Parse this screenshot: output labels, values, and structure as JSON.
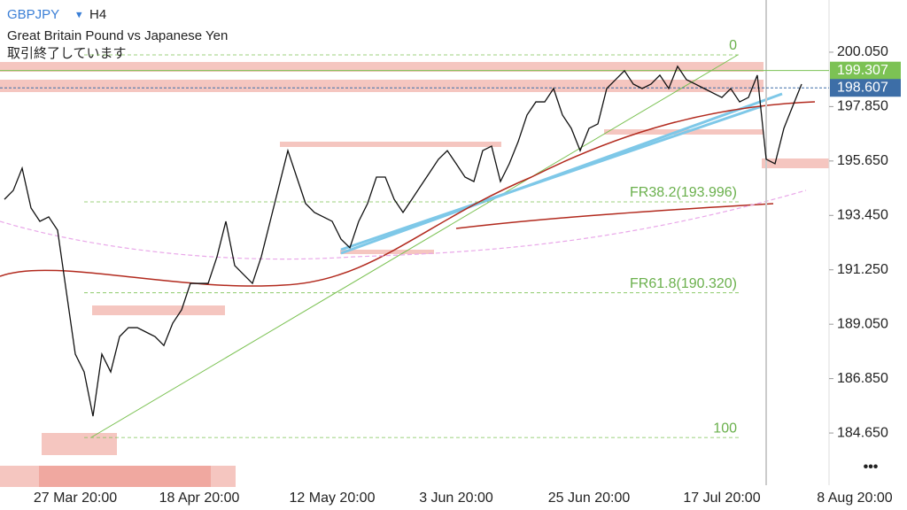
{
  "header": {
    "symbol": "GBPJPY",
    "dropdown": "▾",
    "timeframe": "H4",
    "description": "Great Britain Pound vs Japanese Yen",
    "status": "取引終了しています",
    "menu": "•••"
  },
  "chart_data": {
    "type": "line",
    "color": "#111111",
    "categories": [
      null,
      null,
      null,
      null,
      null,
      null,
      null,
      null,
      "27 Mar 20:00",
      null,
      null,
      null,
      null,
      null,
      null,
      null,
      null,
      null,
      null,
      null,
      null,
      null,
      "18 Apr 20:00",
      null,
      null,
      null,
      null,
      null,
      null,
      null,
      null,
      null,
      null,
      null,
      null,
      null,
      null,
      "12 May 20:00",
      null,
      null,
      null,
      null,
      null,
      null,
      null,
      null,
      null,
      null,
      null,
      null,
      null,
      "3 Jun 20:00",
      null,
      null,
      null,
      null,
      null,
      null,
      null,
      null,
      null,
      null,
      null,
      null,
      null,
      null,
      "25 Jun 20:00",
      null,
      null,
      null,
      null,
      null,
      null,
      null,
      null,
      null,
      null,
      null,
      null,
      null,
      null,
      "17 Jul 20:00",
      null,
      null,
      null,
      null,
      null,
      null,
      null,
      null,
      null,
      null,
      null,
      null,
      null,
      null,
      "8 Aug 20:00"
    ],
    "values": [
      194.1,
      194.46,
      195.36,
      193.75,
      193.21,
      193.39,
      192.85,
      190.34,
      187.84,
      187.12,
      185.33,
      187.84,
      187.12,
      188.55,
      188.91,
      188.91,
      188.73,
      188.55,
      188.19,
      189.09,
      189.63,
      190.7,
      190.7,
      190.7,
      191.78,
      193.21,
      191.42,
      191.06,
      190.7,
      191.78,
      193.21,
      194.64,
      196.07,
      195.0,
      193.93,
      193.57,
      193.39,
      193.21,
      192.49,
      192.14,
      193.21,
      193.93,
      195.0,
      195.0,
      194.1,
      193.57,
      194.1,
      194.64,
      195.18,
      195.72,
      196.07,
      195.54,
      195.0,
      194.82,
      196.07,
      196.25,
      194.82,
      195.54,
      196.43,
      197.51,
      198.04,
      198.04,
      198.58,
      197.51,
      196.97,
      196.07,
      196.97,
      197.15,
      198.58,
      198.94,
      199.3,
      198.76,
      198.58,
      198.76,
      199.12,
      198.58,
      199.48,
      198.94,
      198.76,
      198.58,
      198.4,
      198.22,
      198.58,
      198.04,
      198.22,
      199.12,
      195.72,
      195.54,
      196.97,
      197.87,
      198.76,
      null,
      null,
      null,
      null,
      null,
      null
    ],
    "ylim": [
      182.54,
      202.16
    ],
    "yticks": [
      {
        "value": 200.05,
        "label": "200.050"
      },
      {
        "value": 197.85,
        "label": "197.850"
      },
      {
        "value": 195.65,
        "label": "195.650"
      },
      {
        "value": 193.45,
        "label": "193.450"
      },
      {
        "value": 191.25,
        "label": "191.250"
      },
      {
        "value": 189.05,
        "label": "189.050"
      },
      {
        "value": 186.85,
        "label": "186.850"
      },
      {
        "value": 184.65,
        "label": "184.650"
      }
    ],
    "price_lines": [
      {
        "value": 199.307,
        "color": "#7cc254"
      },
      {
        "value": 198.607,
        "color": "#3d6ea7"
      }
    ],
    "levels": [
      {
        "value": 199.94,
        "label": "0"
      },
      {
        "value": 193.996,
        "label": "FR38.2(193.996)"
      },
      {
        "value": 190.32,
        "label": "FR61.8(190.320)"
      },
      {
        "value": 184.47,
        "label": "100"
      }
    ]
  }
}
